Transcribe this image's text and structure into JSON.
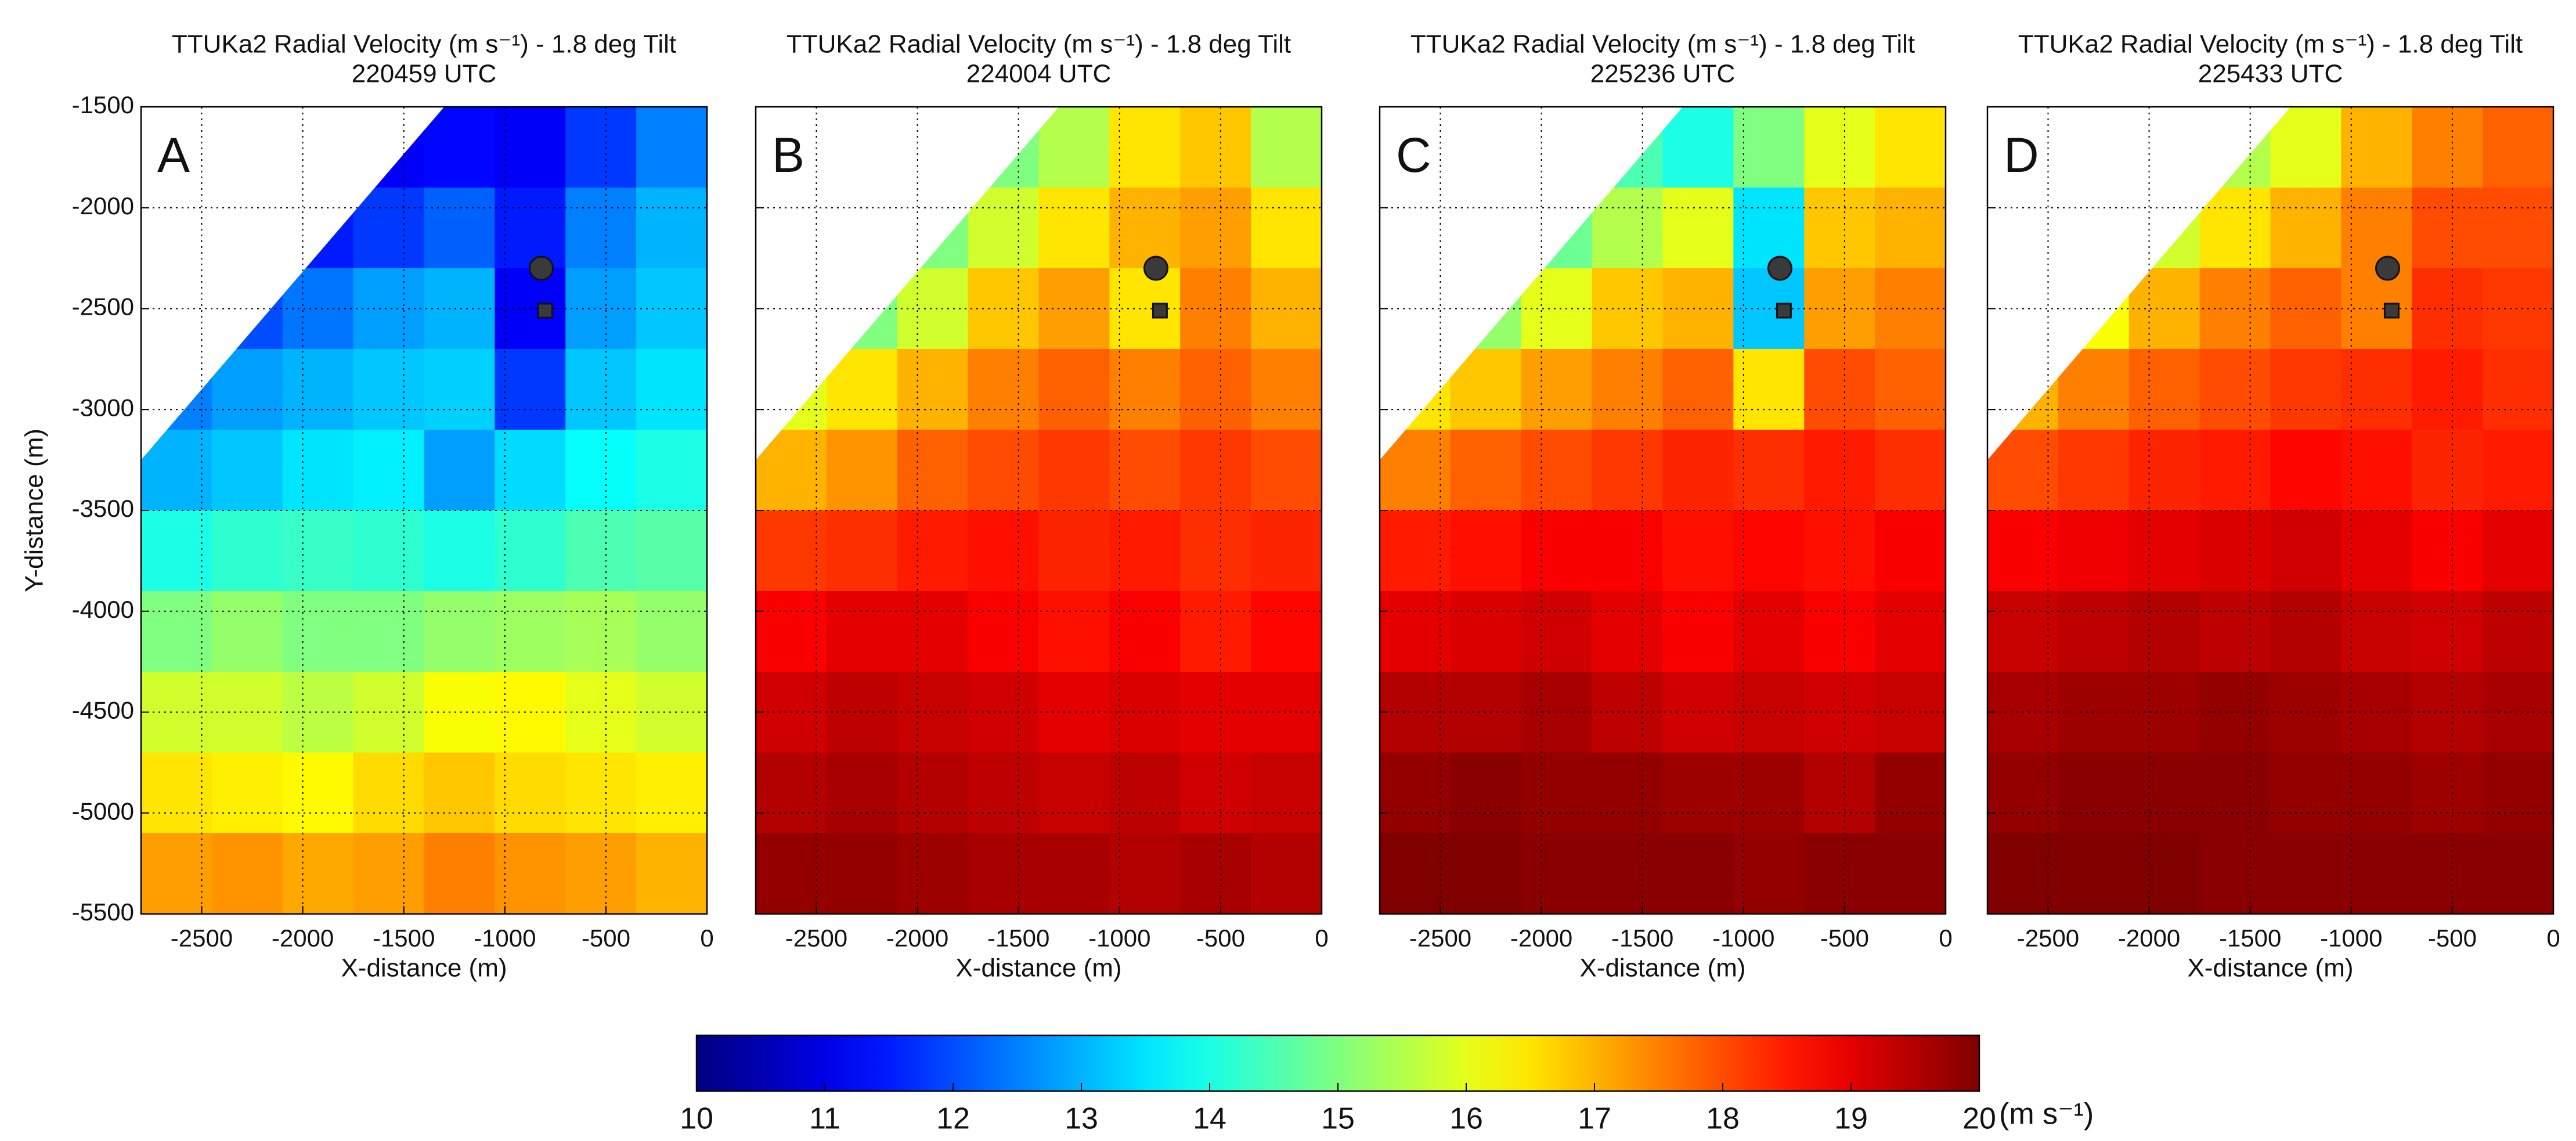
{
  "chart_data": [
    {
      "type": "heatmap",
      "title": "TTUKa2 Radial Velocity (m s⁻¹) - 1.8 deg Tilt",
      "subtitle": "220459 UTC",
      "panel_label": "A",
      "xlabel": "X-distance (m)",
      "ylabel": "Y-distance (m)",
      "ytick_labels": true,
      "grid": true,
      "xlim": [
        -2800,
        0
      ],
      "ylim": [
        -5500,
        -1500
      ],
      "xticks": [
        -2500,
        -2000,
        -1500,
        -1000,
        -500,
        0
      ],
      "yticks": [
        -1500,
        -2000,
        -2500,
        -3000,
        -3500,
        -4000,
        -4500,
        -5000,
        -5500
      ],
      "xbins": [
        -2800,
        -2450,
        -2100,
        -1750,
        -1400,
        -1050,
        -700,
        -350,
        0
      ],
      "ybins": [
        -1500,
        -1900,
        -2300,
        -2700,
        -3100,
        -3500,
        -3900,
        -4300,
        -4700,
        -5100,
        -5500
      ],
      "coverage_edge": [
        [
          -2800,
          -3250
        ],
        [
          -1300,
          -1500
        ]
      ],
      "values": [
        [
          null,
          null,
          null,
          11.2,
          11.3,
          11.2,
          11.8,
          12.5
        ],
        [
          null,
          null,
          11.5,
          11.8,
          12.2,
          11.5,
          12.5,
          13
        ],
        [
          null,
          12,
          12.4,
          12.8,
          13,
          11.2,
          12.8,
          13.2
        ],
        [
          12.5,
          12.8,
          13,
          13.2,
          13.3,
          11.8,
          13.2,
          13.5
        ],
        [
          13,
          13.2,
          13.5,
          13.6,
          12.8,
          13.4,
          13.8,
          14
        ],
        [
          14,
          14.2,
          14.3,
          14.2,
          14,
          14.2,
          14.5,
          14.6
        ],
        [
          15,
          15.2,
          15,
          15,
          15.2,
          15.3,
          15.4,
          15.2
        ],
        [
          15.8,
          15.8,
          15.6,
          15.8,
          16.2,
          16.3,
          16,
          15.8
        ],
        [
          16.5,
          16.4,
          16.3,
          16.6,
          16.8,
          16.6,
          16.5,
          16.4
        ],
        [
          17.2,
          17.3,
          17.1,
          17.2,
          17.5,
          17.3,
          17.2,
          17
        ]
      ],
      "markers": [
        {
          "x": -820,
          "y": -2300,
          "shape": "circle"
        },
        {
          "x": -800,
          "y": -2510,
          "shape": "square"
        }
      ]
    },
    {
      "type": "heatmap",
      "title": "TTUKa2 Radial Velocity (m s⁻¹) - 1.8 deg Tilt",
      "subtitle": "224004 UTC",
      "panel_label": "B",
      "xlabel": "X-distance (m)",
      "ytick_labels": false,
      "grid": true,
      "xlim": [
        -2800,
        0
      ],
      "ylim": [
        -5500,
        -1500
      ],
      "xticks": [
        -2500,
        -2000,
        -1500,
        -1000,
        -500,
        0
      ],
      "yticks": [
        -1500,
        -2000,
        -2500,
        -3000,
        -3500,
        -4000,
        -4500,
        -5000,
        -5500
      ],
      "xbins": [
        -2800,
        -2450,
        -2100,
        -1750,
        -1400,
        -1050,
        -700,
        -350,
        0
      ],
      "ybins": [
        -1500,
        -1900,
        -2300,
        -2700,
        -3100,
        -3500,
        -3900,
        -4300,
        -4700,
        -5100,
        -5500
      ],
      "coverage_edge": [
        [
          -2800,
          -3250
        ],
        [
          -1300,
          -1500
        ]
      ],
      "values": [
        [
          null,
          null,
          null,
          15,
          15.5,
          16.5,
          16.8,
          15.5
        ],
        [
          null,
          null,
          15,
          15.8,
          16.5,
          17,
          17.2,
          16.5
        ],
        [
          null,
          15,
          15.8,
          16.8,
          17.2,
          16.5,
          17.5,
          17
        ],
        [
          16,
          16.5,
          17,
          17.5,
          17.8,
          17.5,
          17.8,
          17.5
        ],
        [
          17,
          17.3,
          17.8,
          18,
          18.2,
          18,
          18.2,
          18
        ],
        [
          18.2,
          18.3,
          18.5,
          18.6,
          18.4,
          18.5,
          18.3,
          18.4
        ],
        [
          18.8,
          19,
          19,
          18.8,
          18.6,
          18.8,
          18.5,
          18.7
        ],
        [
          19.2,
          19.4,
          19.3,
          19.2,
          19,
          19.1,
          19,
          19
        ],
        [
          19.5,
          19.6,
          19.5,
          19.4,
          19.3,
          19.4,
          19.2,
          19.3
        ],
        [
          19.8,
          19.8,
          19.7,
          19.6,
          19.6,
          19.5,
          19.6,
          19.5
        ]
      ],
      "markers": [
        {
          "x": -820,
          "y": -2300,
          "shape": "circle"
        },
        {
          "x": -800,
          "y": -2510,
          "shape": "square"
        }
      ]
    },
    {
      "type": "heatmap",
      "title": "TTUKa2 Radial Velocity (m s⁻¹) - 1.8 deg Tilt",
      "subtitle": "225236 UTC",
      "panel_label": "C",
      "xlabel": "X-distance (m)",
      "ytick_labels": false,
      "grid": true,
      "xlim": [
        -2800,
        0
      ],
      "ylim": [
        -5500,
        -1500
      ],
      "xticks": [
        -2500,
        -2000,
        -1500,
        -1000,
        -500,
        0
      ],
      "yticks": [
        -1500,
        -2000,
        -2500,
        -3000,
        -3500,
        -4000,
        -4500,
        -5000,
        -5500
      ],
      "xbins": [
        -2800,
        -2450,
        -2100,
        -1750,
        -1400,
        -1050,
        -700,
        -350,
        0
      ],
      "ybins": [
        -1500,
        -1900,
        -2300,
        -2700,
        -3100,
        -3500,
        -3900,
        -4300,
        -4700,
        -5100,
        -5500
      ],
      "coverage_edge": [
        [
          -2800,
          -3250
        ],
        [
          -1300,
          -1500
        ]
      ],
      "values": [
        [
          null,
          null,
          null,
          14.5,
          14,
          15,
          16,
          16.5
        ],
        [
          null,
          null,
          14.8,
          15.5,
          16,
          13.5,
          16.8,
          17
        ],
        [
          null,
          15.2,
          16,
          16.8,
          17,
          13.2,
          17.2,
          17.5
        ],
        [
          16.5,
          16.8,
          17.2,
          17.5,
          17.8,
          16.5,
          18,
          17.8
        ],
        [
          17.5,
          17.8,
          18,
          18.2,
          18.4,
          18.3,
          18.5,
          18.3
        ],
        [
          18.5,
          18.6,
          18.8,
          18.8,
          18.6,
          18.7,
          18.6,
          18.8
        ],
        [
          19,
          19.1,
          19.2,
          19,
          18.8,
          19,
          18.8,
          19
        ],
        [
          19.5,
          19.5,
          19.6,
          19.4,
          19.2,
          19.3,
          19.2,
          19.3
        ],
        [
          19.8,
          19.9,
          19.8,
          19.8,
          19.7,
          19.7,
          19.5,
          19.8
        ],
        [
          20,
          20,
          19.9,
          19.9,
          19.9,
          19.8,
          19.9,
          19.9
        ]
      ],
      "markers": [
        {
          "x": -820,
          "y": -2300,
          "shape": "circle"
        },
        {
          "x": -800,
          "y": -2510,
          "shape": "square"
        }
      ]
    },
    {
      "type": "heatmap",
      "title": "TTUKa2 Radial Velocity (m s⁻¹) - 1.8 deg Tilt",
      "subtitle": "225433 UTC",
      "panel_label": "D",
      "xlabel": "X-distance (m)",
      "ytick_labels": false,
      "grid": true,
      "xlim": [
        -2800,
        0
      ],
      "ylim": [
        -5500,
        -1500
      ],
      "xticks": [
        -2500,
        -2000,
        -1500,
        -1000,
        -500,
        0
      ],
      "yticks": [
        -1500,
        -2000,
        -2500,
        -3000,
        -3500,
        -4000,
        -4500,
        -5000,
        -5500
      ],
      "xbins": [
        -2800,
        -2450,
        -2100,
        -1750,
        -1400,
        -1050,
        -700,
        -350,
        0
      ],
      "ybins": [
        -1500,
        -1900,
        -2300,
        -2700,
        -3100,
        -3500,
        -3900,
        -4300,
        -4700,
        -5100,
        -5500
      ],
      "coverage_edge": [
        [
          -2800,
          -3250
        ],
        [
          -1300,
          -1500
        ]
      ],
      "values": [
        [
          null,
          null,
          null,
          15.5,
          16,
          17,
          17.5,
          17.8
        ],
        [
          null,
          null,
          15.8,
          16.5,
          17,
          17.5,
          18,
          18
        ],
        [
          null,
          16.2,
          17,
          17.5,
          17.8,
          17.5,
          18.3,
          18.2
        ],
        [
          17,
          17.5,
          17.8,
          18,
          18.2,
          18.3,
          18.5,
          18.3
        ],
        [
          18,
          18.2,
          18.4,
          18.5,
          18.7,
          18.6,
          18.4,
          18.5
        ],
        [
          18.8,
          18.9,
          19,
          19.1,
          19.2,
          19,
          18.8,
          19
        ],
        [
          19.3,
          19.4,
          19.5,
          19.4,
          19.5,
          19.3,
          19.2,
          19.4
        ],
        [
          19.6,
          19.7,
          19.7,
          19.8,
          19.7,
          19.6,
          19.5,
          19.6
        ],
        [
          19.8,
          19.9,
          19.9,
          19.9,
          19.8,
          19.8,
          19.7,
          19.8
        ],
        [
          20,
          20,
          20,
          19.9,
          19.9,
          19.9,
          19.9,
          19.9
        ]
      ],
      "markers": [
        {
          "x": -820,
          "y": -2300,
          "shape": "circle"
        },
        {
          "x": -800,
          "y": -2510,
          "shape": "square"
        }
      ]
    }
  ],
  "colorbar": {
    "range": [
      10,
      20
    ],
    "ticks": [
      10,
      11,
      12,
      13,
      14,
      15,
      16,
      17,
      18,
      19,
      20
    ],
    "label": "(m s⁻¹)",
    "colormap": "jet"
  }
}
